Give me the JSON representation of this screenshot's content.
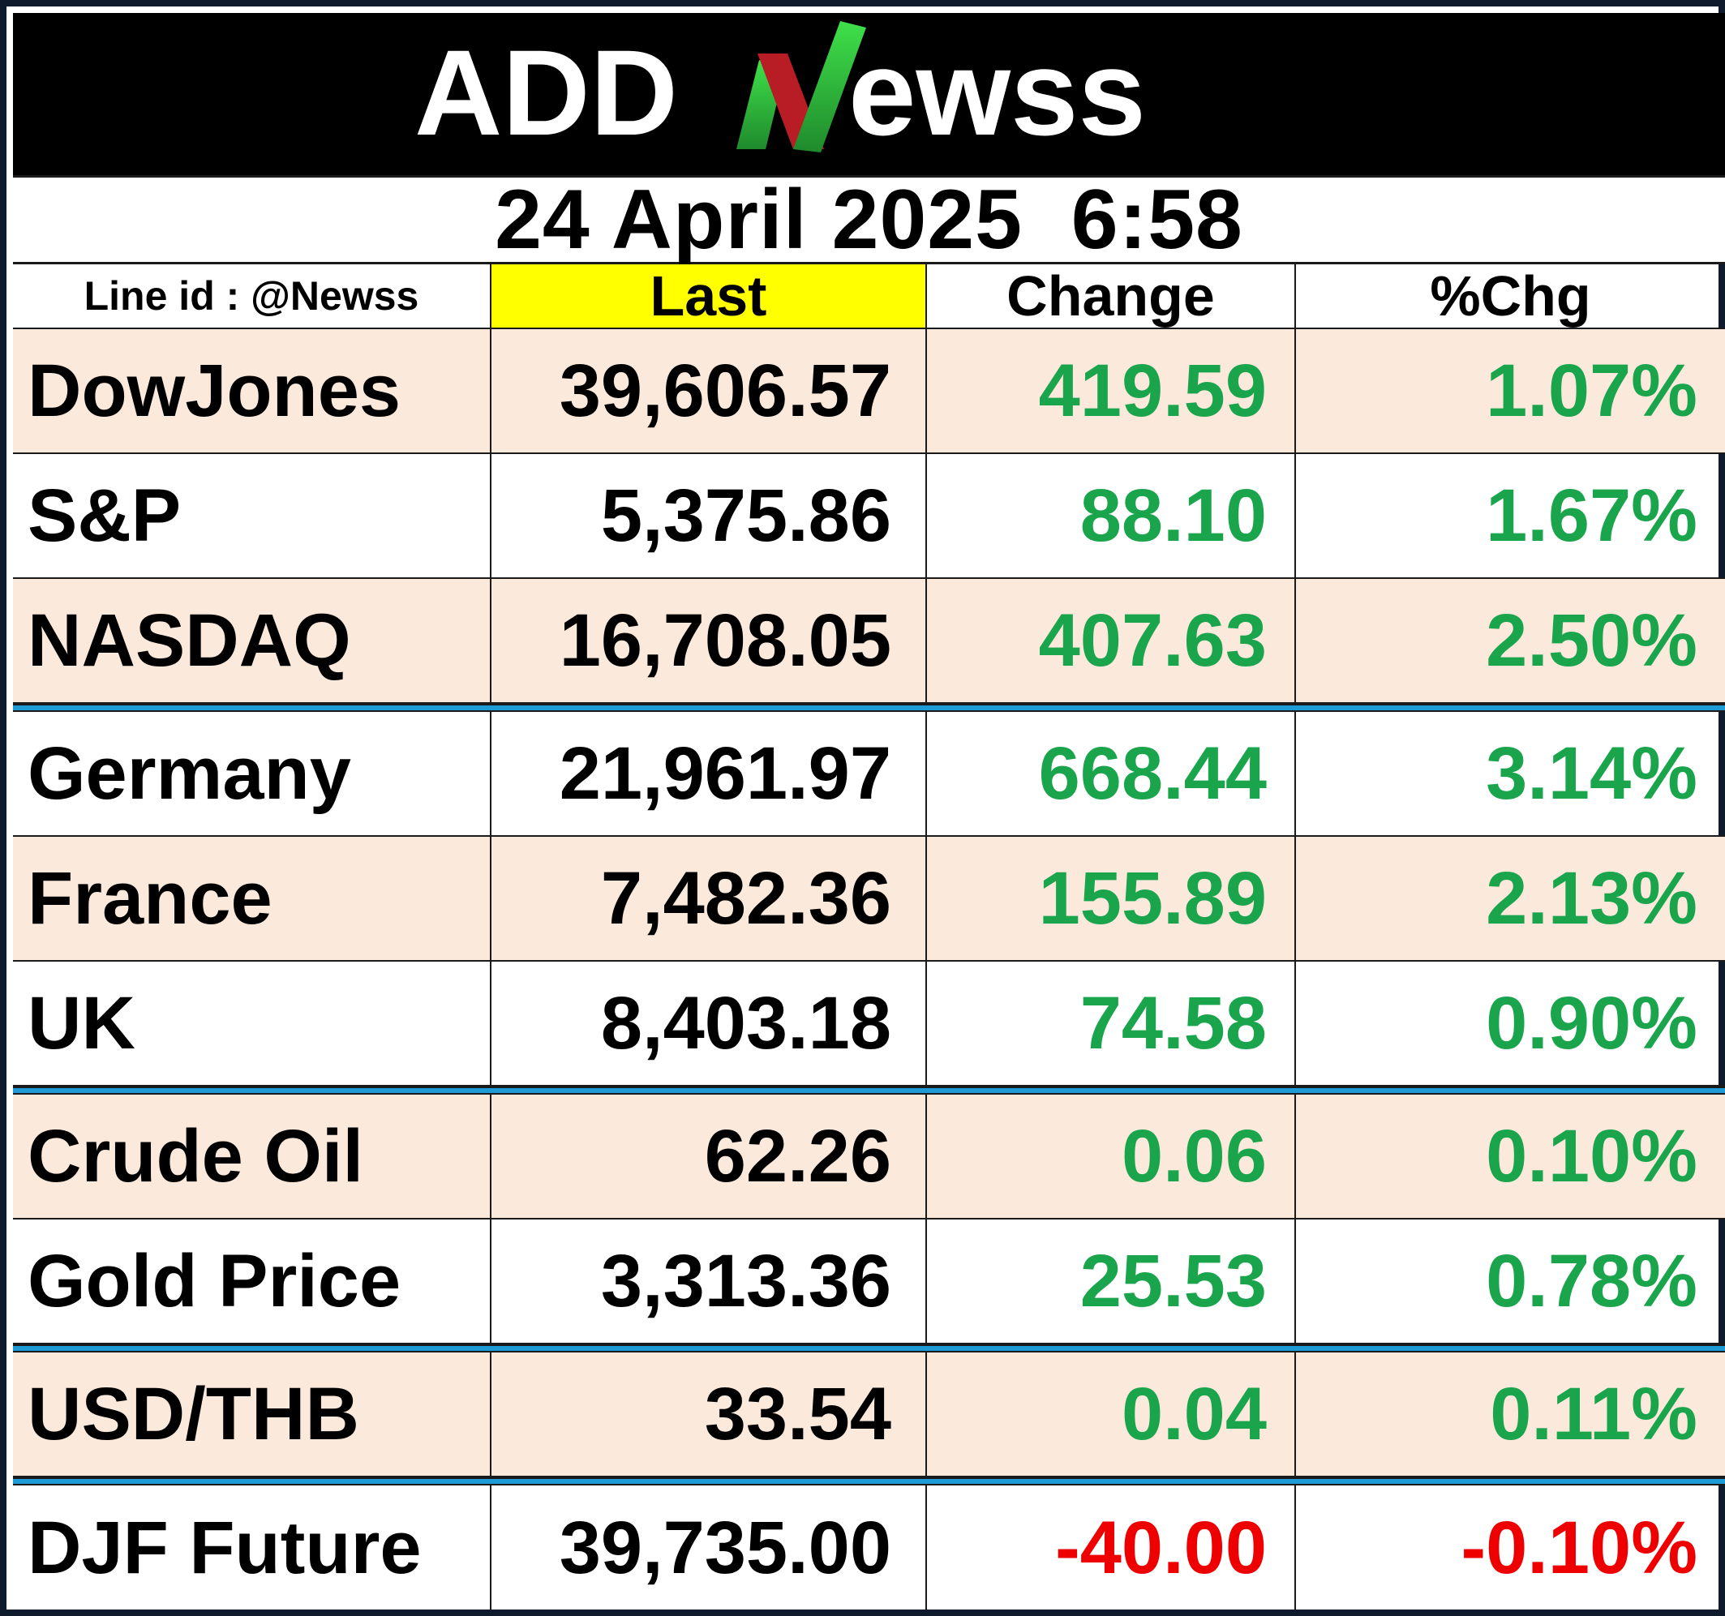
{
  "logo": {
    "text_left": "ADD",
    "text_right": "ewss",
    "colors": {
      "background": "#000000",
      "letters": "#ffffff",
      "n_red": "#b81c24",
      "n_green": "#2fc43a"
    }
  },
  "date_line": "24 April 2025  6:58",
  "header": {
    "line_id": "Line id : @Newss",
    "last": "Last",
    "change": "Change",
    "pct": "%Chg"
  },
  "rows": [
    {
      "name": "DowJones",
      "last": "39,606.57",
      "change": "419.59",
      "pct": "1.07%",
      "direction": "up"
    },
    {
      "name": "S&P",
      "last": "5,375.86",
      "change": "88.10",
      "pct": "1.67%",
      "direction": "up"
    },
    {
      "name": "NASDAQ",
      "last": "16,708.05",
      "change": "407.63",
      "pct": "2.50%",
      "direction": "up"
    },
    {
      "name": "Germany",
      "last": "21,961.97",
      "change": "668.44",
      "pct": "3.14%",
      "direction": "up"
    },
    {
      "name": "France",
      "last": "7,482.36",
      "change": "155.89",
      "pct": "2.13%",
      "direction": "up"
    },
    {
      "name": "UK",
      "last": "8,403.18",
      "change": "74.58",
      "pct": "0.90%",
      "direction": "up"
    },
    {
      "name": "Crude Oil",
      "last": "62.26",
      "change": "0.06",
      "pct": "0.10%",
      "direction": "up"
    },
    {
      "name": "Gold Price",
      "last": "3,313.36",
      "change": "25.53",
      "pct": "0.78%",
      "direction": "up"
    },
    {
      "name": "USD/THB",
      "last": "33.54",
      "change": "0.04",
      "pct": "0.11%",
      "direction": "up"
    },
    {
      "name": "DJF Future",
      "last": "39,735.00",
      "change": "-40.00",
      "pct": "-0.10%",
      "direction": "down"
    }
  ],
  "colors": {
    "positive": "#1aa54c",
    "negative": "#ee0000",
    "highlight": "#ffff00",
    "row_tint": "#fbe9dc",
    "separator": "#1e9bd7"
  }
}
